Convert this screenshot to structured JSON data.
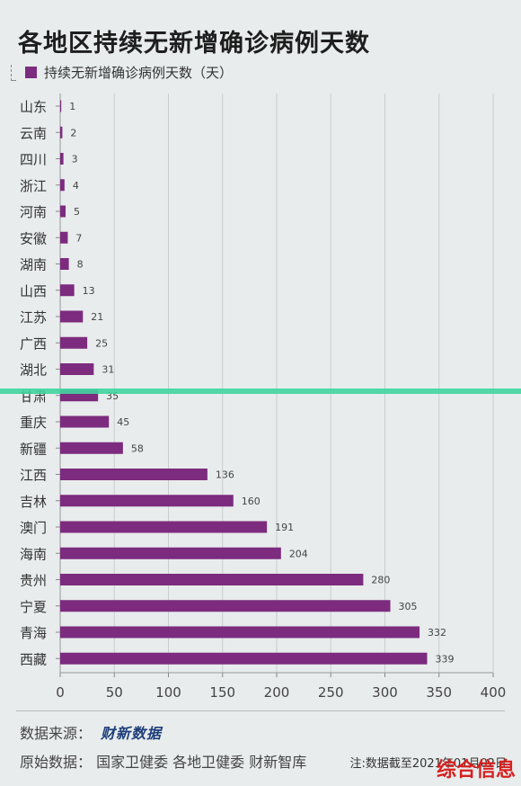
{
  "title": "各地区持续无新增确诊病例天数",
  "legend_label": "持续无新增确诊病例天数（天）",
  "source_label": "数据来源：",
  "source_brand": "财新数据",
  "origin_text": "原始数据： 国家卫健委  各地卫健委  财新智库",
  "note": "注:数据截至2021年01月02日",
  "watermark": "综合信息",
  "colors": {
    "bar": "#7c2b7e",
    "accent_line": "#3fd6a0",
    "watermark": "#d62020"
  },
  "chart_data": {
    "type": "bar",
    "orientation": "horizontal",
    "categories": [
      "山东",
      "云南",
      "四川",
      "浙江",
      "河南",
      "安徽",
      "湖南",
      "山西",
      "江苏",
      "广西",
      "湖北",
      "甘肃",
      "重庆",
      "新疆",
      "江西",
      "吉林",
      "澳门",
      "海南",
      "贵州",
      "宁夏",
      "青海",
      "西藏"
    ],
    "values": [
      1,
      2,
      3,
      4,
      5,
      7,
      8,
      13,
      21,
      25,
      31,
      35,
      45,
      58,
      136,
      160,
      191,
      204,
      280,
      305,
      332,
      339
    ],
    "xlim": [
      0,
      400
    ],
    "xticks": [
      0,
      50,
      100,
      150,
      200,
      250,
      300,
      350,
      400
    ],
    "grid": true,
    "data_labels": true
  }
}
